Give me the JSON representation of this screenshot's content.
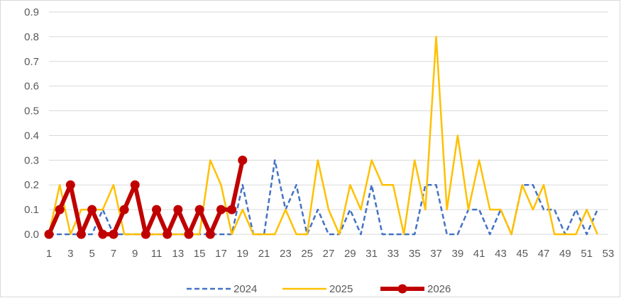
{
  "chart_data": {
    "type": "line",
    "title": "",
    "xlabel": "",
    "ylabel": "",
    "ylim": [
      0,
      0.9
    ],
    "y_ticks": [
      "0.0",
      "0.1",
      "0.2",
      "0.3",
      "0.4",
      "0.5",
      "0.6",
      "0.7",
      "0.8",
      "0.9"
    ],
    "x_range": [
      1,
      53
    ],
    "x_ticks": [
      "1",
      "3",
      "5",
      "7",
      "9",
      "11",
      "13",
      "15",
      "17",
      "19",
      "21",
      "23",
      "25",
      "27",
      "29",
      "31",
      "33",
      "35",
      "37",
      "39",
      "41",
      "43",
      "45",
      "47",
      "49",
      "51",
      "53"
    ],
    "grid": "horizontal",
    "legend_position": "bottom",
    "series": [
      {
        "name": "2024",
        "color": "#4472c4",
        "style": "dashed",
        "values": [
          0,
          0,
          0,
          0,
          0,
          0.1,
          0,
          0,
          0,
          0,
          0,
          0,
          0,
          0,
          0,
          0,
          0,
          0,
          0.2,
          0,
          0,
          0.3,
          0.1,
          0.2,
          0,
          0.1,
          0,
          0,
          0.1,
          0,
          0.2,
          0,
          0,
          0,
          0,
          0.2,
          0.2,
          0,
          0,
          0.1,
          0.1,
          0,
          0.1,
          0,
          0.2,
          0.2,
          0.1,
          0.1,
          0,
          0.1,
          0,
          0.1
        ]
      },
      {
        "name": "2025",
        "color": "#ffc000",
        "style": "solid",
        "values": [
          0,
          0.2,
          0,
          0.1,
          0.1,
          0.1,
          0.2,
          0,
          0,
          0,
          0,
          0,
          0,
          0,
          0,
          0.3,
          0.2,
          0,
          0.1,
          0,
          0,
          0,
          0.1,
          0,
          0,
          0.3,
          0.1,
          0,
          0.2,
          0.1,
          0.3,
          0.2,
          0.2,
          0,
          0.3,
          0.1,
          0.8,
          0.1,
          0.4,
          0.1,
          0.3,
          0.1,
          0.1,
          0,
          0.2,
          0.1,
          0.2,
          0,
          0,
          0,
          0.1,
          0
        ]
      },
      {
        "name": "2026",
        "color": "#c00000",
        "style": "solid-markers",
        "values": [
          0,
          0.1,
          0.2,
          0,
          0.1,
          0,
          0,
          0.1,
          0.2,
          0,
          0.1,
          0,
          0.1,
          0,
          0.1,
          0,
          0.1,
          0.1,
          0.3
        ]
      }
    ]
  }
}
